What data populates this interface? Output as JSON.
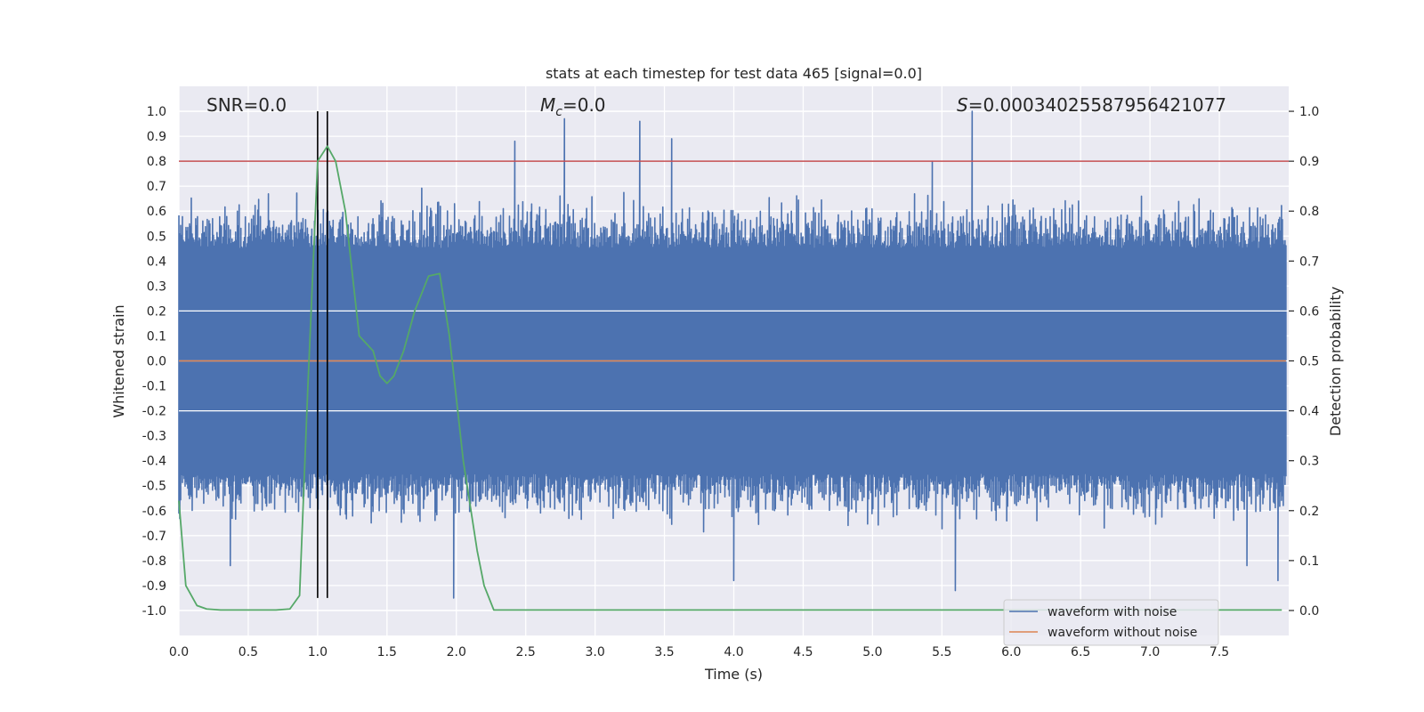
{
  "chart_data": {
    "type": "line",
    "title": "stats at each timestep for test data 465 [signal=0.0]",
    "xlabel": "Time (s)",
    "ylabel": "Whitened strain",
    "y2label": "Detection probability",
    "xlim": [
      0.0,
      8.0
    ],
    "ylim": [
      -1.1,
      1.1
    ],
    "y2lim": [
      -0.05,
      1.05
    ],
    "xticks": [
      0.0,
      0.5,
      1.0,
      1.5,
      2.0,
      2.5,
      3.0,
      3.5,
      4.0,
      4.5,
      5.0,
      5.5,
      6.0,
      6.5,
      7.0,
      7.5
    ],
    "xtick_labels": [
      "0.0",
      "0.5",
      "1.0",
      "1.5",
      "2.0",
      "2.5",
      "3.0",
      "3.5",
      "4.0",
      "4.5",
      "5.0",
      "5.5",
      "6.0",
      "6.5",
      "7.0",
      "7.5"
    ],
    "yticks": [
      1.0,
      0.9,
      0.8,
      0.7,
      0.6,
      0.5,
      0.4,
      0.3,
      0.2,
      0.1,
      0.0,
      -0.1,
      -0.2,
      -0.3,
      -0.4,
      -0.5,
      -0.6,
      -0.7,
      -0.8,
      -0.9,
      -1.0
    ],
    "ytick_labels": [
      "1.0",
      "0.9",
      "0.8",
      "0.7",
      "0.6",
      "0.5",
      "0.4",
      "0.3",
      "0.2",
      "0.1",
      "0.0",
      "-0.1",
      "-0.2",
      "-0.3",
      "-0.4",
      "-0.5",
      "-0.6",
      "-0.7",
      "-0.8",
      "-0.9",
      "-1.0"
    ],
    "y2ticks": [
      1.0,
      0.9,
      0.8,
      0.7,
      0.6,
      0.5,
      0.4,
      0.3,
      0.2,
      0.1,
      0.0
    ],
    "y2tick_labels": [
      "1.0",
      "0.9",
      "0.8",
      "0.7",
      "0.6",
      "0.5",
      "0.4",
      "0.3",
      "0.2",
      "0.1",
      "0.0"
    ],
    "grid": true,
    "annotations": {
      "snr": "SNR=0.0",
      "mc": "=0.0",
      "mc_symbol": "M",
      "mc_sub": "c",
      "s_value": "=0.00034025587956421077",
      "s_symbol": "S"
    },
    "series": [
      {
        "name": "waveform with noise",
        "color": "#4c72b0",
        "kind": "noise",
        "description": "dense whitened noise spanning roughly -0.95 to 1.0",
        "peaks": [
          {
            "t": 2.42,
            "v": 0.88
          },
          {
            "t": 2.78,
            "v": 0.97
          },
          {
            "t": 3.32,
            "v": 0.96
          },
          {
            "t": 3.55,
            "v": 0.89
          },
          {
            "t": 5.72,
            "v": 1.0
          },
          {
            "t": 5.43,
            "v": 0.8
          },
          {
            "t": 1.98,
            "v": -0.95
          },
          {
            "t": 5.6,
            "v": -0.92
          },
          {
            "t": 4.0,
            "v": -0.88
          },
          {
            "t": 7.92,
            "v": -0.88
          },
          {
            "t": 0.37,
            "v": -0.82
          },
          {
            "t": 7.7,
            "v": -0.82
          }
        ]
      },
      {
        "name": "waveform without noise",
        "color": "#dd8452",
        "kind": "flat",
        "value": 0.0
      },
      {
        "name": "detection probability",
        "color": "#55a868",
        "axis": "y2",
        "x": [
          0.0,
          0.05,
          0.13,
          0.2,
          0.3,
          0.5,
          0.7,
          0.8,
          0.87,
          0.93,
          1.0,
          1.07,
          1.13,
          1.2,
          1.3,
          1.4,
          1.45,
          1.5,
          1.55,
          1.62,
          1.7,
          1.8,
          1.88,
          1.95,
          2.05,
          2.15,
          2.2,
          2.27,
          2.5,
          7.95
        ],
        "values": [
          0.22,
          0.05,
          0.01,
          0.003,
          0.001,
          0.001,
          0.001,
          0.003,
          0.03,
          0.45,
          0.9,
          0.93,
          0.9,
          0.8,
          0.55,
          0.52,
          0.47,
          0.455,
          0.47,
          0.52,
          0.6,
          0.67,
          0.675,
          0.55,
          0.3,
          0.12,
          0.05,
          0.001,
          0.001,
          0.001
        ]
      }
    ],
    "threshold_line": {
      "axis": "y2",
      "value": 0.9,
      "color": "#c44e52"
    },
    "vertical_lines": [
      1.0,
      1.07
    ],
    "legend": {
      "position": "lower-right",
      "entries": [
        {
          "label": "waveform with noise",
          "color": "#4c72b0"
        },
        {
          "label": "waveform without noise",
          "color": "#dd8452"
        }
      ]
    }
  }
}
